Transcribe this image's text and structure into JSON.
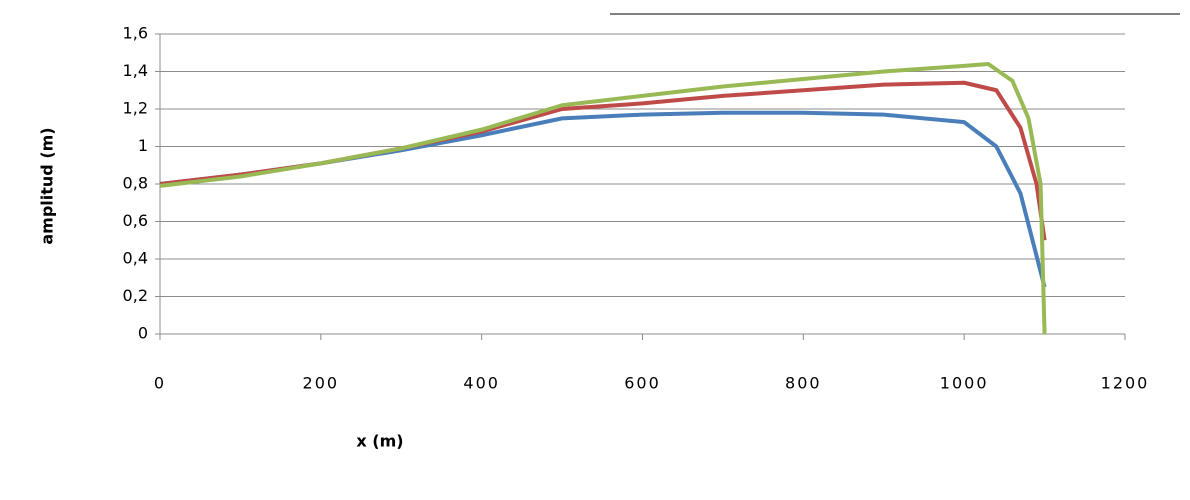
{
  "chart_data": {
    "type": "line",
    "xlabel": "x (m)",
    "ylabel": "amplitud (m)",
    "xlim": [
      0,
      1200
    ],
    "xticks": [
      0,
      200,
      400,
      600,
      800,
      1000,
      1200
    ],
    "ylim": [
      0,
      1.6
    ],
    "yticks": [
      0,
      {
        "value": 0.2,
        "label": "0,2"
      },
      {
        "value": 0.4,
        "label": "0,4"
      },
      {
        "value": 0.6,
        "label": "0,6"
      },
      {
        "value": 0.8,
        "label": "0,8"
      },
      1,
      {
        "value": 1.2,
        "label": "1,2"
      },
      {
        "value": 1.4,
        "label": "1,4"
      },
      {
        "value": 1.6,
        "label": "1,6"
      }
    ],
    "grid": true,
    "series": [
      {
        "color": "#4a7ebb",
        "x": [
          0,
          100,
          200,
          300,
          400,
          500,
          600,
          700,
          800,
          900,
          1000,
          1040,
          1070,
          1100
        ],
        "values": [
          0.8,
          0.85,
          0.91,
          0.98,
          1.06,
          1.15,
          1.17,
          1.18,
          1.18,
          1.17,
          1.13,
          1.0,
          0.75,
          0.25
        ]
      },
      {
        "color": "#be4b48",
        "x": [
          0,
          100,
          200,
          300,
          400,
          500,
          600,
          700,
          800,
          900,
          1000,
          1040,
          1070,
          1090,
          1100
        ],
        "values": [
          0.8,
          0.85,
          0.91,
          0.99,
          1.08,
          1.2,
          1.23,
          1.27,
          1.3,
          1.33,
          1.34,
          1.3,
          1.1,
          0.8,
          0.5
        ]
      },
      {
        "color": "#98b954",
        "x": [
          0,
          100,
          200,
          300,
          400,
          500,
          600,
          700,
          800,
          900,
          1000,
          1030,
          1060,
          1080,
          1095,
          1100
        ],
        "values": [
          0.79,
          0.84,
          0.91,
          0.99,
          1.09,
          1.22,
          1.27,
          1.32,
          1.36,
          1.4,
          1.43,
          1.44,
          1.35,
          1.15,
          0.8,
          0.0
        ]
      }
    ]
  }
}
